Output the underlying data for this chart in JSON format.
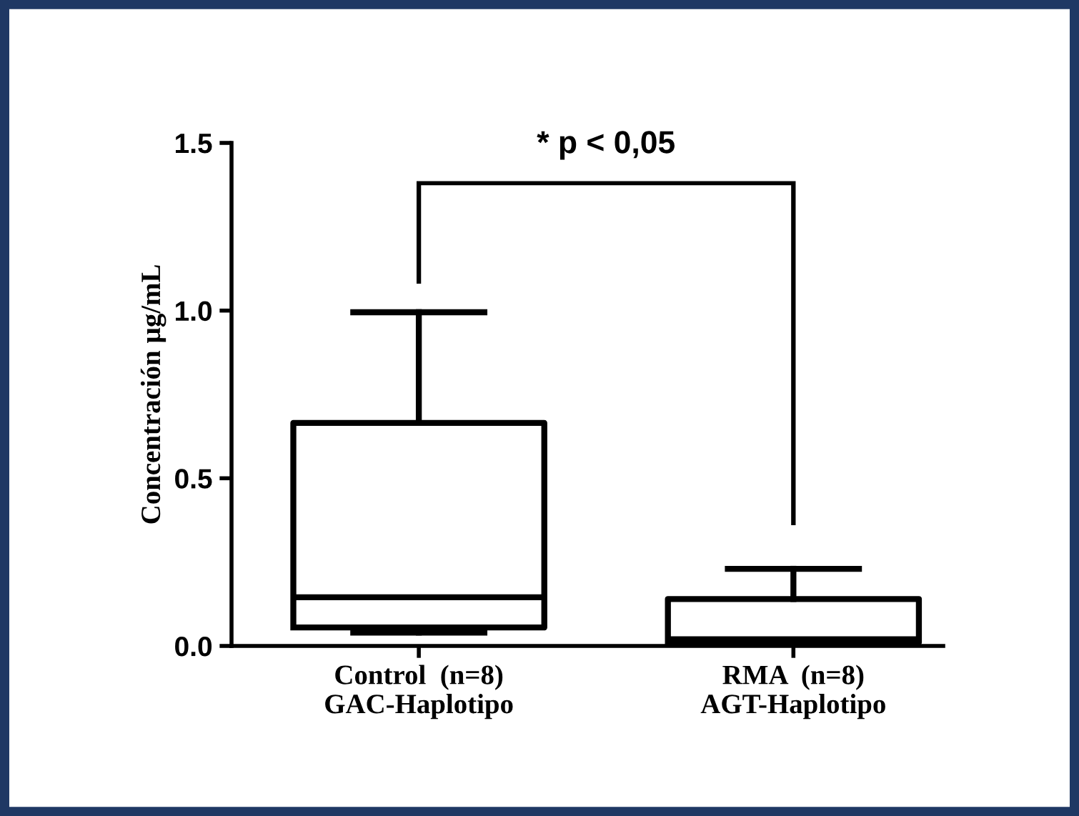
{
  "chart_data": {
    "type": "box",
    "ylabel": "Concentración µg/mL",
    "categories": [
      "Control  (n=8)\nGAC-Haplotipo",
      "RMA  (n=8)\nAGT-Haplotipo"
    ],
    "boxes": [
      {
        "low": 0.04,
        "q1": 0.055,
        "median": 0.145,
        "q3": 0.665,
        "high": 0.995
      },
      {
        "low": 0.01,
        "q1": 0.01,
        "median": 0.02,
        "q3": 0.14,
        "high": 0.23
      }
    ],
    "ylim": [
      0,
      1.5
    ],
    "yticks": [
      {
        "value": 0,
        "label": "0.0"
      },
      {
        "value": 0.5,
        "label": "0.5"
      },
      {
        "value": 1.0,
        "label": "1.0"
      },
      {
        "value": 1.5,
        "label": "1.5"
      }
    ],
    "grid": false,
    "annotations": [
      "* p < 0,05"
    ]
  }
}
